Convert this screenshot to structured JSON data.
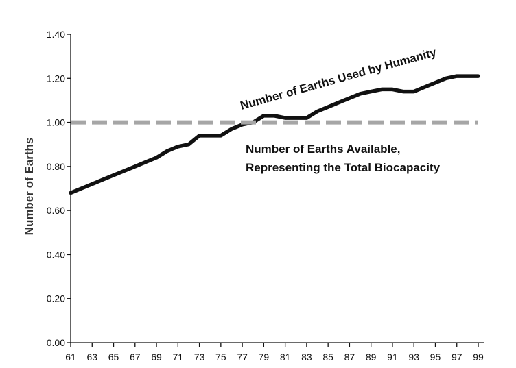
{
  "chart_data": {
    "type": "line",
    "title": "",
    "xlabel": "",
    "ylabel": "Number of Earths",
    "x_tick_labels": [
      "61",
      "63",
      "65",
      "67",
      "69",
      "71",
      "73",
      "75",
      "77",
      "79",
      "81",
      "83",
      "85",
      "87",
      "89",
      "91",
      "93",
      "95",
      "97",
      "99"
    ],
    "y_tick_labels": [
      "0.00",
      "0.20",
      "0.40",
      "0.60",
      "0.80",
      "1.00",
      "1.20",
      "1.40"
    ],
    "xlim": [
      1961,
      1999
    ],
    "ylim": [
      0,
      1.4
    ],
    "grid": false,
    "colors": {
      "used": "#111111",
      "available": "#a6a6a6",
      "axis": "#111111"
    },
    "series": [
      {
        "name": "Number of Earths Used by Humanity",
        "style": "solid",
        "x": [
          1961,
          1962,
          1963,
          1964,
          1965,
          1966,
          1967,
          1968,
          1969,
          1970,
          1971,
          1972,
          1973,
          1974,
          1975,
          1976,
          1977,
          1978,
          1979,
          1980,
          1981,
          1982,
          1983,
          1984,
          1985,
          1986,
          1987,
          1988,
          1989,
          1990,
          1991,
          1992,
          1993,
          1994,
          1995,
          1996,
          1997,
          1998,
          1999
        ],
        "y": [
          0.68,
          0.7,
          0.72,
          0.74,
          0.76,
          0.78,
          0.8,
          0.82,
          0.84,
          0.87,
          0.89,
          0.9,
          0.94,
          0.94,
          0.94,
          0.97,
          0.99,
          1.0,
          1.03,
          1.03,
          1.02,
          1.02,
          1.02,
          1.05,
          1.07,
          1.09,
          1.11,
          1.13,
          1.14,
          1.15,
          1.15,
          1.14,
          1.14,
          1.16,
          1.18,
          1.2,
          1.21,
          1.21,
          1.21
        ]
      },
      {
        "name": "Number of Earths Available, Representing the Total Biocapacity",
        "style": "dashed",
        "x": [
          1961,
          1999
        ],
        "y": [
          1.0,
          1.0
        ]
      }
    ],
    "annotations": {
      "used": "Number of Earths Used by Humanity",
      "available_line1": "Number of Earths Available,",
      "available_line2": "Representing the Total Biocapacity"
    }
  }
}
